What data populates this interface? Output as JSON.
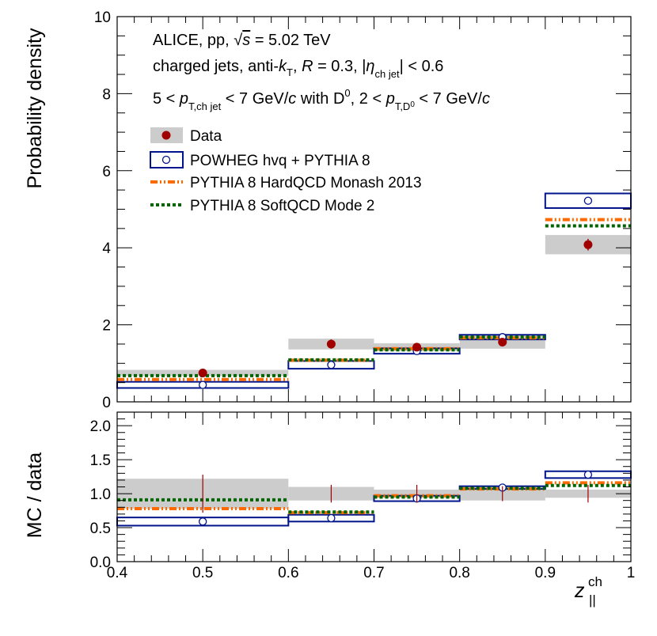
{
  "chart_data": {
    "type": "histogram-with-ratio",
    "x_edges": [
      0.4,
      0.6,
      0.7,
      0.8,
      0.9,
      1.0
    ],
    "x_label": "z",
    "x_label_sub": "||",
    "x_label_sup": "ch",
    "x_ticks": [
      "0.4",
      "0.5",
      "0.6",
      "0.7",
      "0.8",
      "0.9",
      "1"
    ],
    "annotations": {
      "line1_pre": "ALICE, pp, ",
      "line1_sqrt": "√",
      "line1_s": "s",
      "line1_post": " = 5.02 TeV",
      "line2_a": "charged jets, anti-",
      "line2_k": "k",
      "line2_T": "T",
      "line2_comma": ", ",
      "line2_R": "R",
      "line2_b": " = 0.3, |",
      "line2_eta": "η",
      "line2_etasub": "ch jet",
      "line2_c": "| < 0.6",
      "line3_a": "5 < ",
      "line3_p": "p",
      "line3_psub": "T,ch jet",
      "line3_b": " < 7 GeV/",
      "line3_c": "c",
      "line3_d": " with D",
      "line3_dsup": "0",
      "line3_e": ", 2 < ",
      "line3_p2": "p",
      "line3_p2sub": "T,D",
      "line3_p2subsup": "0",
      "line3_f": " < 7 GeV/",
      "line3_g": "c"
    },
    "legend": {
      "data": "Data",
      "powheg": "POWHEG hvq + PYTHIA 8",
      "hardqcd": "PYTHIA 8 HardQCD Monash 2013",
      "softqcd": "PYTHIA 8 SoftQCD Mode 2"
    },
    "top_panel": {
      "ylabel": "Probability density",
      "ylim": [
        0,
        10
      ],
      "y_ticks": [
        "0",
        "2",
        "4",
        "6",
        "8",
        "10"
      ],
      "series": [
        {
          "name": "Data",
          "centers": [
            0.5,
            0.65,
            0.75,
            0.85,
            0.95
          ],
          "values": [
            0.75,
            1.5,
            1.42,
            1.55,
            4.08
          ],
          "stat_err": [
            0.06,
            0.12,
            0.08,
            0.08,
            0.15
          ],
          "syst_err": [
            0.08,
            0.14,
            0.1,
            0.17,
            0.25
          ]
        },
        {
          "name": "POWHEG hvq + PYTHIA 8",
          "values": [
            0.44,
            0.96,
            1.32,
            1.68,
            5.22
          ],
          "band": [
            0.08,
            0.1,
            0.07,
            0.06,
            0.19
          ]
        },
        {
          "name": "PYTHIA 8 HardQCD Monash 2013",
          "values": [
            0.58,
            1.08,
            1.38,
            1.66,
            4.73
          ]
        },
        {
          "name": "PYTHIA 8 SoftQCD Mode 2",
          "values": [
            0.68,
            1.09,
            1.35,
            1.68,
            4.57
          ]
        }
      ]
    },
    "ratio_panel": {
      "ylabel": "MC / data",
      "ylim": [
        0,
        2.2
      ],
      "y_ticks": [
        "0.0",
        "0.5",
        "1.0",
        "1.5",
        "2.0"
      ],
      "data_band": [
        0.22,
        0.1,
        0.06,
        0.1,
        0.06
      ],
      "data_err": [
        0.28,
        0.13,
        0.13,
        0.11,
        0.13
      ],
      "series": [
        {
          "name": "POWHEG hvq + PYTHIA 8",
          "values": [
            0.59,
            0.64,
            0.93,
            1.09,
            1.28
          ],
          "band": [
            0.06,
            0.05,
            0.04,
            0.02,
            0.05
          ]
        },
        {
          "name": "PYTHIA 8 HardQCD Monash 2013",
          "values": [
            0.78,
            0.72,
            0.97,
            1.07,
            1.16
          ]
        },
        {
          "name": "PYTHIA 8 SoftQCD Mode 2",
          "values": [
            0.91,
            0.73,
            0.95,
            1.08,
            1.12
          ]
        }
      ]
    },
    "colors": {
      "data": "#a00000",
      "data_band": "#cccccc",
      "powheg": "#00148c",
      "hardqcd": "#ff6a00",
      "softqcd": "#006400"
    }
  }
}
